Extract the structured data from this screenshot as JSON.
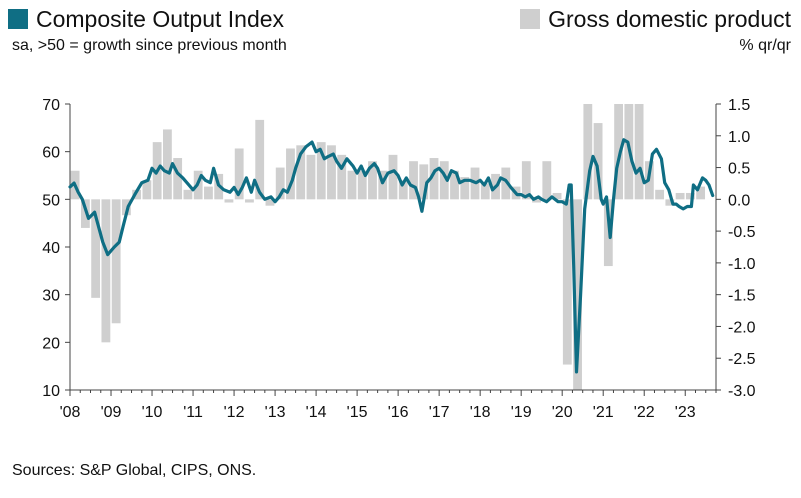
{
  "colors": {
    "line": "#0f6e84",
    "bars": "#cfcfcf",
    "axis": "#444444"
  },
  "legend": {
    "line_label": "Composite Output Index",
    "line_subtitle": "sa, >50 = growth since previous month",
    "bar_label": "Gross domestic product",
    "bar_subtitle": "% qr/qr"
  },
  "footer": {
    "sources": "Sources: S&P Global, CIPS, ONS."
  },
  "chart_data": {
    "type": "combo-bar-line",
    "title": "",
    "x_range": [
      2008,
      2023.75
    ],
    "x_tick_labels": [
      "'08",
      "'09",
      "'10",
      "'11",
      "'12",
      "'13",
      "'14",
      "'15",
      "'16",
      "'17",
      "'18",
      "'19",
      "'20",
      "'21",
      "'22",
      "'23"
    ],
    "y_left": {
      "label": "Composite Output Index",
      "range": [
        10,
        70
      ],
      "ticks": [
        "10",
        "20",
        "30",
        "40",
        "50",
        "60",
        "70"
      ]
    },
    "y_right": {
      "label": "% qr/qr",
      "range": [
        -3.0,
        1.5
      ],
      "ticks": [
        "-3.0",
        "-2.5",
        "-2.0",
        "-1.5",
        "-1.0",
        "-0.5",
        "0.0",
        "0.5",
        "1.0",
        "1.5"
      ]
    },
    "series": [
      {
        "name": "Gross domestic product",
        "type": "bar",
        "axis": "right",
        "quarters": [
          "2008Q1",
          "2008Q2",
          "2008Q3",
          "2008Q4",
          "2009Q1",
          "2009Q2",
          "2009Q3",
          "2009Q4",
          "2010Q1",
          "2010Q2",
          "2010Q3",
          "2010Q4",
          "2011Q1",
          "2011Q2",
          "2011Q3",
          "2011Q4",
          "2012Q1",
          "2012Q2",
          "2012Q3",
          "2012Q4",
          "2013Q1",
          "2013Q2",
          "2013Q3",
          "2013Q4",
          "2014Q1",
          "2014Q2",
          "2014Q3",
          "2014Q4",
          "2015Q1",
          "2015Q2",
          "2015Q3",
          "2015Q4",
          "2016Q1",
          "2016Q2",
          "2016Q3",
          "2016Q4",
          "2017Q1",
          "2017Q2",
          "2017Q3",
          "2017Q4",
          "2018Q1",
          "2018Q2",
          "2018Q3",
          "2018Q4",
          "2019Q1",
          "2019Q2",
          "2019Q3",
          "2019Q4",
          "2020Q1",
          "2020Q2",
          "2020Q3",
          "2020Q4",
          "2021Q1",
          "2021Q2",
          "2021Q3",
          "2021Q4",
          "2022Q1",
          "2022Q2",
          "2022Q3",
          "2022Q4",
          "2023Q1",
          "2023Q2"
        ],
        "values": [
          0.45,
          -0.45,
          -1.55,
          -2.25,
          -1.95,
          -0.25,
          0.15,
          0.3,
          0.9,
          1.1,
          0.65,
          0.15,
          0.45,
          0.2,
          0.4,
          -0.05,
          0.8,
          -0.05,
          1.25,
          -0.1,
          0.5,
          0.8,
          0.85,
          0.7,
          0.9,
          0.85,
          0.7,
          0.45,
          0.45,
          0.6,
          0.45,
          0.7,
          0.3,
          0.6,
          0.55,
          0.65,
          0.6,
          0.45,
          0.35,
          0.5,
          0.25,
          0.4,
          0.5,
          0.2,
          0.6,
          -0.05,
          0.6,
          0.1,
          -2.6,
          -3.1,
          1.5,
          1.2,
          -1.05,
          1.5,
          1.5,
          1.5,
          0.6,
          0.15,
          -0.1,
          0.1,
          0.1,
          0.2
        ]
      },
      {
        "name": "Composite Output Index",
        "type": "line",
        "axis": "left",
        "points": [
          [
            2008.0,
            52.6
          ],
          [
            2008.1,
            53.4
          ],
          [
            2008.2,
            51.5
          ],
          [
            2008.3,
            50.0
          ],
          [
            2008.45,
            46.0
          ],
          [
            2008.6,
            47.3
          ],
          [
            2008.8,
            41.0
          ],
          [
            2008.92,
            38.4
          ],
          [
            2009.08,
            40.0
          ],
          [
            2009.2,
            41.0
          ],
          [
            2009.3,
            44.5
          ],
          [
            2009.42,
            48.5
          ],
          [
            2009.58,
            51.0
          ],
          [
            2009.75,
            53.5
          ],
          [
            2009.9,
            54.0
          ],
          [
            2010.0,
            56.5
          ],
          [
            2010.1,
            55.5
          ],
          [
            2010.2,
            57.0
          ],
          [
            2010.3,
            56.0
          ],
          [
            2010.42,
            55.5
          ],
          [
            2010.5,
            57.5
          ],
          [
            2010.62,
            55.5
          ],
          [
            2010.75,
            54.5
          ],
          [
            2010.9,
            53.0
          ],
          [
            2011.0,
            52.0
          ],
          [
            2011.1,
            53.0
          ],
          [
            2011.2,
            55.0
          ],
          [
            2011.3,
            54.0
          ],
          [
            2011.42,
            53.5
          ],
          [
            2011.5,
            56.5
          ],
          [
            2011.62,
            53.0
          ],
          [
            2011.75,
            52.0
          ],
          [
            2011.9,
            51.5
          ],
          [
            2012.0,
            52.5
          ],
          [
            2012.1,
            51.0
          ],
          [
            2012.2,
            52.5
          ],
          [
            2012.3,
            54.5
          ],
          [
            2012.42,
            51.5
          ],
          [
            2012.5,
            54.0
          ],
          [
            2012.62,
            51.5
          ],
          [
            2012.75,
            50.0
          ],
          [
            2012.9,
            50.5
          ],
          [
            2013.0,
            49.5
          ],
          [
            2013.1,
            50.5
          ],
          [
            2013.2,
            52.0
          ],
          [
            2013.3,
            51.5
          ],
          [
            2013.42,
            54.0
          ],
          [
            2013.5,
            56.5
          ],
          [
            2013.62,
            59.5
          ],
          [
            2013.75,
            61.0
          ],
          [
            2013.9,
            62.0
          ],
          [
            2014.0,
            60.0
          ],
          [
            2014.1,
            60.5
          ],
          [
            2014.2,
            58.5
          ],
          [
            2014.3,
            59.0
          ],
          [
            2014.42,
            59.5
          ],
          [
            2014.5,
            58.0
          ],
          [
            2014.62,
            56.5
          ],
          [
            2014.75,
            58.5
          ],
          [
            2014.9,
            57.0
          ],
          [
            2015.0,
            55.5
          ],
          [
            2015.1,
            57.0
          ],
          [
            2015.2,
            55.0
          ],
          [
            2015.3,
            56.5
          ],
          [
            2015.42,
            57.5
          ],
          [
            2015.5,
            56.5
          ],
          [
            2015.62,
            53.5
          ],
          [
            2015.75,
            55.5
          ],
          [
            2015.9,
            56.0
          ],
          [
            2016.0,
            55.0
          ],
          [
            2016.1,
            53.0
          ],
          [
            2016.2,
            54.5
          ],
          [
            2016.3,
            53.0
          ],
          [
            2016.42,
            52.5
          ],
          [
            2016.5,
            50.5
          ],
          [
            2016.58,
            47.5
          ],
          [
            2016.7,
            53.5
          ],
          [
            2016.8,
            54.5
          ],
          [
            2016.9,
            56.0
          ],
          [
            2017.0,
            56.5
          ],
          [
            2017.1,
            55.5
          ],
          [
            2017.2,
            54.0
          ],
          [
            2017.3,
            56.0
          ],
          [
            2017.42,
            55.5
          ],
          [
            2017.5,
            53.5
          ],
          [
            2017.62,
            54.0
          ],
          [
            2017.75,
            54.0
          ],
          [
            2017.9,
            53.5
          ],
          [
            2018.0,
            54.0
          ],
          [
            2018.1,
            53.0
          ],
          [
            2018.2,
            54.5
          ],
          [
            2018.3,
            52.0
          ],
          [
            2018.42,
            53.0
          ],
          [
            2018.5,
            54.5
          ],
          [
            2018.62,
            54.0
          ],
          [
            2018.75,
            52.5
          ],
          [
            2018.9,
            51.0
          ],
          [
            2019.0,
            51.0
          ],
          [
            2019.1,
            50.5
          ],
          [
            2019.2,
            51.0
          ],
          [
            2019.3,
            50.0
          ],
          [
            2019.42,
            50.5
          ],
          [
            2019.5,
            50.0
          ],
          [
            2019.62,
            49.5
          ],
          [
            2019.75,
            50.5
          ],
          [
            2019.9,
            49.5
          ],
          [
            2020.0,
            49.5
          ],
          [
            2020.1,
            49.0
          ],
          [
            2020.17,
            53.0
          ],
          [
            2020.22,
            53.0
          ],
          [
            2020.28,
            36.0
          ],
          [
            2020.35,
            13.8
          ],
          [
            2020.45,
            30.0
          ],
          [
            2020.55,
            48.0
          ],
          [
            2020.67,
            56.0
          ],
          [
            2020.75,
            59.0
          ],
          [
            2020.85,
            57.0
          ],
          [
            2020.95,
            50.0
          ],
          [
            2021.0,
            49.0
          ],
          [
            2021.08,
            50.5
          ],
          [
            2021.17,
            42.0
          ],
          [
            2021.25,
            50.0
          ],
          [
            2021.33,
            56.5
          ],
          [
            2021.42,
            60.0
          ],
          [
            2021.5,
            62.5
          ],
          [
            2021.6,
            62.0
          ],
          [
            2021.7,
            58.0
          ],
          [
            2021.8,
            55.5
          ],
          [
            2021.9,
            56.5
          ],
          [
            2022.0,
            53.5
          ],
          [
            2022.1,
            54.0
          ],
          [
            2022.2,
            59.5
          ],
          [
            2022.3,
            60.5
          ],
          [
            2022.42,
            58.5
          ],
          [
            2022.5,
            53.5
          ],
          [
            2022.6,
            52.0
          ],
          [
            2022.7,
            49.0
          ],
          [
            2022.78,
            49.0
          ],
          [
            2022.85,
            48.5
          ],
          [
            2022.95,
            48.0
          ],
          [
            2023.05,
            48.5
          ],
          [
            2023.15,
            48.5
          ],
          [
            2023.2,
            53.0
          ],
          [
            2023.3,
            52.0
          ],
          [
            2023.42,
            54.5
          ],
          [
            2023.5,
            54.0
          ],
          [
            2023.58,
            53.0
          ],
          [
            2023.67,
            50.8
          ]
        ]
      }
    ]
  }
}
